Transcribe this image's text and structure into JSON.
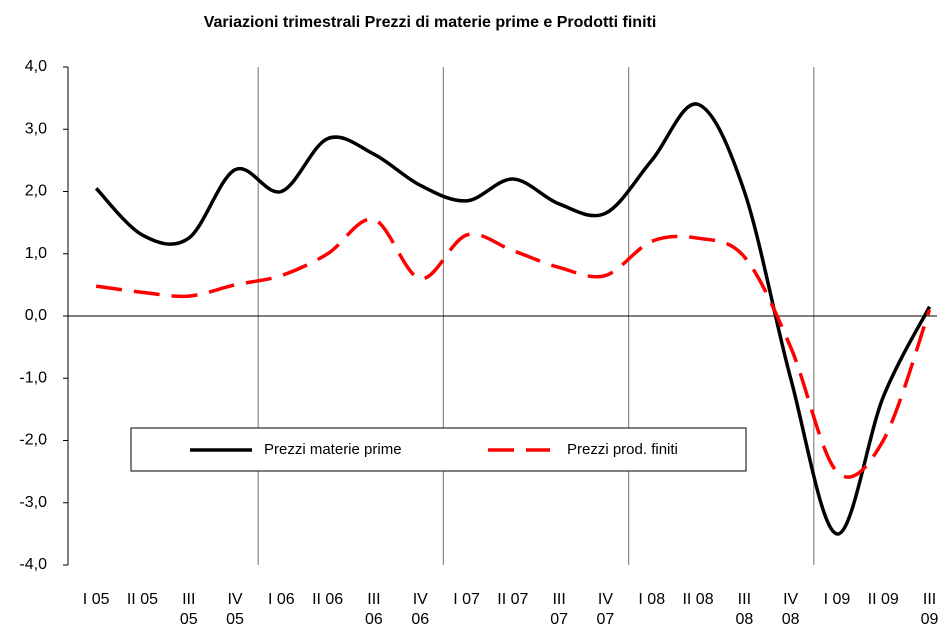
{
  "chart_data": {
    "type": "line",
    "title": "Variazioni trimestrali Prezzi di materie prime e Prodotti finiti",
    "categories": [
      "I 05",
      "II 05",
      "III 05",
      "IV 05",
      "I 06",
      "II 06",
      "III 06",
      "IV 06",
      "I 07",
      "II 07",
      "III 07",
      "IV 07",
      "I 08",
      "II 08",
      "III 08",
      "IV 08",
      "I 09",
      "II 09",
      "III 09"
    ],
    "series": [
      {
        "name": "Prezzi materie prime",
        "color": "#000000",
        "dash": false,
        "values": [
          2.05,
          1.3,
          1.25,
          2.35,
          2.0,
          2.85,
          2.6,
          2.1,
          1.85,
          2.2,
          1.8,
          1.65,
          2.5,
          3.4,
          2.0,
          -1.0,
          -3.5,
          -1.3,
          0.15
        ]
      },
      {
        "name": "Prezzi prod. finiti",
        "color": "#ff0000",
        "dash": true,
        "values": [
          0.48,
          0.38,
          0.32,
          0.5,
          0.65,
          1.0,
          1.55,
          0.6,
          1.3,
          1.05,
          0.78,
          0.65,
          1.2,
          1.25,
          0.95,
          -0.5,
          -2.5,
          -2.0,
          0.1
        ]
      }
    ],
    "ylim": [
      -4,
      4
    ],
    "yticks": [
      {
        "value": -4,
        "label": "-4,0"
      },
      {
        "value": -3,
        "label": "-3,0"
      },
      {
        "value": -2,
        "label": "-2,0"
      },
      {
        "value": -1,
        "label": "-1,0"
      },
      {
        "value": 0,
        "label": "0,0"
      },
      {
        "value": 1,
        "label": "1,0"
      },
      {
        "value": 2,
        "label": "2,0"
      },
      {
        "value": 3,
        "label": "3,0"
      },
      {
        "value": 4,
        "label": "4,0"
      }
    ],
    "year_gridlines": true
  }
}
